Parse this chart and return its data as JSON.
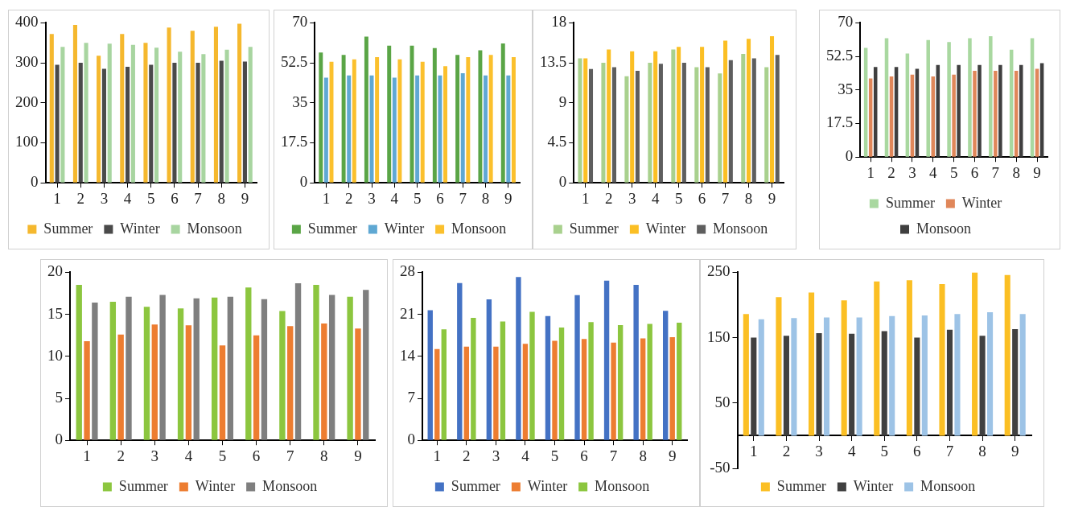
{
  "chart_data": [
    {
      "type": "bar",
      "categories": [
        "1",
        "2",
        "3",
        "4",
        "5",
        "6",
        "7",
        "8",
        "9"
      ],
      "ylim": [
        0,
        400
      ],
      "yticks": [
        0,
        100,
        200,
        300,
        400
      ],
      "legend": "bottom",
      "series": [
        {
          "name": "Summer",
          "color": "#f5b82e",
          "values": [
            372,
            395,
            318,
            372,
            350,
            388,
            380,
            390,
            398
          ]
        },
        {
          "name": "Winter",
          "color": "#4a4a4a",
          "values": [
            295,
            300,
            285,
            290,
            295,
            300,
            300,
            305,
            303
          ]
        },
        {
          "name": "Monsoon",
          "color": "#a8d5a0",
          "values": [
            340,
            350,
            348,
            345,
            338,
            328,
            322,
            333,
            340
          ]
        }
      ]
    },
    {
      "type": "bar",
      "categories": [
        "1",
        "2",
        "3",
        "4",
        "5",
        "6",
        "7",
        "8",
        "9"
      ],
      "ylim": [
        0,
        70
      ],
      "yticks": [
        0,
        17.5,
        35,
        52.5,
        70
      ],
      "legend": "bottom",
      "series": [
        {
          "name": "Summer",
          "color": "#5aa546",
          "values": [
            57,
            56,
            64,
            60,
            60,
            59,
            56,
            58,
            61
          ]
        },
        {
          "name": "Winter",
          "color": "#5fa8d3",
          "values": [
            46,
            47,
            47,
            46,
            47,
            47,
            48,
            47,
            47
          ]
        },
        {
          "name": "Monsoon",
          "color": "#fbc02d",
          "values": [
            53,
            54,
            55,
            54,
            53,
            51,
            55,
            56,
            55
          ]
        }
      ]
    },
    {
      "type": "bar",
      "categories": [
        "1",
        "2",
        "3",
        "4",
        "5",
        "6",
        "7",
        "8",
        "9"
      ],
      "ylim": [
        0,
        18
      ],
      "yticks": [
        0,
        4.5,
        9,
        13.5,
        18
      ],
      "legend": "bottom",
      "series": [
        {
          "name": "Summer",
          "color": "#a9d18e",
          "values": [
            14,
            13.5,
            12,
            13.5,
            15,
            13,
            12.3,
            14.5,
            13
          ]
        },
        {
          "name": "Winter",
          "color": "#fbbf24",
          "values": [
            14,
            15,
            14.8,
            14.8,
            15.3,
            15.3,
            16,
            16.2,
            16.5
          ]
        },
        {
          "name": "Monsoon",
          "color": "#5e5e5e",
          "values": [
            12.8,
            13,
            12.6,
            13.4,
            13.5,
            13,
            13.8,
            14,
            14.4
          ]
        }
      ]
    },
    {
      "type": "bar",
      "categories": [
        "1",
        "2",
        "3",
        "4",
        "5",
        "6",
        "7",
        "8",
        "9"
      ],
      "ylim": [
        0,
        70
      ],
      "yticks": [
        0,
        17.5,
        35,
        52.5,
        70
      ],
      "legend": "bottom",
      "series": [
        {
          "name": "Summer",
          "color": "#a9d8a0",
          "values": [
            57,
            62,
            54,
            61,
            60,
            62,
            63,
            56,
            62
          ]
        },
        {
          "name": "Winter",
          "color": "#e0875a",
          "values": [
            41,
            42,
            43,
            42,
            43,
            45,
            45,
            45,
            46
          ]
        },
        {
          "name": "Monsoon",
          "color": "#3f3f3f",
          "values": [
            47,
            47,
            46,
            48,
            48,
            48,
            48,
            48,
            49
          ]
        }
      ]
    },
    {
      "type": "bar",
      "categories": [
        "1",
        "2",
        "3",
        "4",
        "5",
        "6",
        "7",
        "8",
        "9"
      ],
      "ylim": [
        0,
        20
      ],
      "yticks": [
        0,
        5,
        10,
        15,
        20
      ],
      "legend": "bottom",
      "series": [
        {
          "name": "Summer",
          "color": "#8cc63f",
          "values": [
            18.5,
            16.5,
            15.9,
            15.7,
            17,
            18.2,
            15.4,
            18.5,
            17.1
          ]
        },
        {
          "name": "Winter",
          "color": "#ed7d31",
          "values": [
            11.8,
            12.6,
            13.8,
            13.7,
            11.3,
            12.5,
            13.6,
            13.9,
            13.3
          ]
        },
        {
          "name": "Monsoon",
          "color": "#7f7f7f",
          "values": [
            16.4,
            17.1,
            17.3,
            16.9,
            17.1,
            16.8,
            18.7,
            17.3,
            17.9
          ]
        }
      ]
    },
    {
      "type": "bar",
      "categories": [
        "1",
        "2",
        "3",
        "4",
        "5",
        "6",
        "7",
        "8",
        "9"
      ],
      "ylim": [
        0,
        28
      ],
      "yticks": [
        0,
        7,
        14,
        21,
        28
      ],
      "legend": "bottom",
      "series": [
        {
          "name": "Summer",
          "color": "#4472c4",
          "values": [
            21.7,
            26.2,
            23.5,
            27.2,
            20.7,
            24.2,
            26.6,
            25.9,
            21.6
          ]
        },
        {
          "name": "Winter",
          "color": "#ed7d31",
          "values": [
            15.2,
            15.6,
            15.6,
            16.1,
            16.6,
            16.9,
            16.3,
            17,
            17.2
          ]
        },
        {
          "name": "Monsoon",
          "color": "#8cc63f",
          "values": [
            18.5,
            20.4,
            19.8,
            21.4,
            18.8,
            19.7,
            19.2,
            19.4,
            19.6
          ]
        }
      ]
    },
    {
      "type": "bar",
      "categories": [
        "1",
        "2",
        "3",
        "4",
        "5",
        "6",
        "7",
        "8",
        "9"
      ],
      "ylim": [
        -50,
        250
      ],
      "yticks": [
        -50,
        50,
        150,
        250
      ],
      "legend": "bottom",
      "series": [
        {
          "name": "Summer",
          "color": "#fbbf24",
          "values": [
            186,
            212,
            219,
            207,
            236,
            238,
            232,
            250,
            246
          ]
        },
        {
          "name": "Winter",
          "color": "#404040",
          "values": [
            150,
            153,
            157,
            156,
            160,
            150,
            162,
            153,
            163
          ]
        },
        {
          "name": "Monsoon",
          "color": "#9dc3e6",
          "values": [
            178,
            180,
            181,
            181,
            183,
            184,
            186,
            189,
            186
          ]
        }
      ]
    }
  ]
}
